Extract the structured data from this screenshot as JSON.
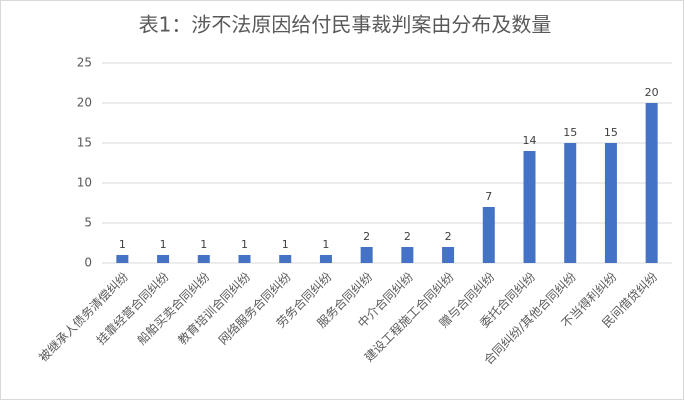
{
  "chart_data": {
    "type": "bar",
    "title": "表1：涉不法原因给付民事裁判案由分布及数量",
    "categories": [
      "被继承人债务清偿纠纷",
      "挂靠经营合同纠纷",
      "船舶买卖合同纠纷",
      "教育培训合同纠纷",
      "网络服务合同纠纷",
      "劳务合同纠纷",
      "服务合同纠纷",
      "中介合同纠纷",
      "建设工程施工合同纠纷",
      "赠与合同纠纷",
      "委托合同纠纷",
      "合同纠纷/其他合同纠纷",
      "不当得利纠纷",
      "民间借贷纠纷"
    ],
    "values": [
      1,
      1,
      1,
      1,
      1,
      1,
      2,
      2,
      2,
      7,
      14,
      15,
      15,
      20
    ],
    "color": "#4472c4",
    "ylim": [
      0,
      25
    ],
    "yticks": [
      0,
      5,
      10,
      15,
      20,
      25
    ],
    "grid": true
  }
}
